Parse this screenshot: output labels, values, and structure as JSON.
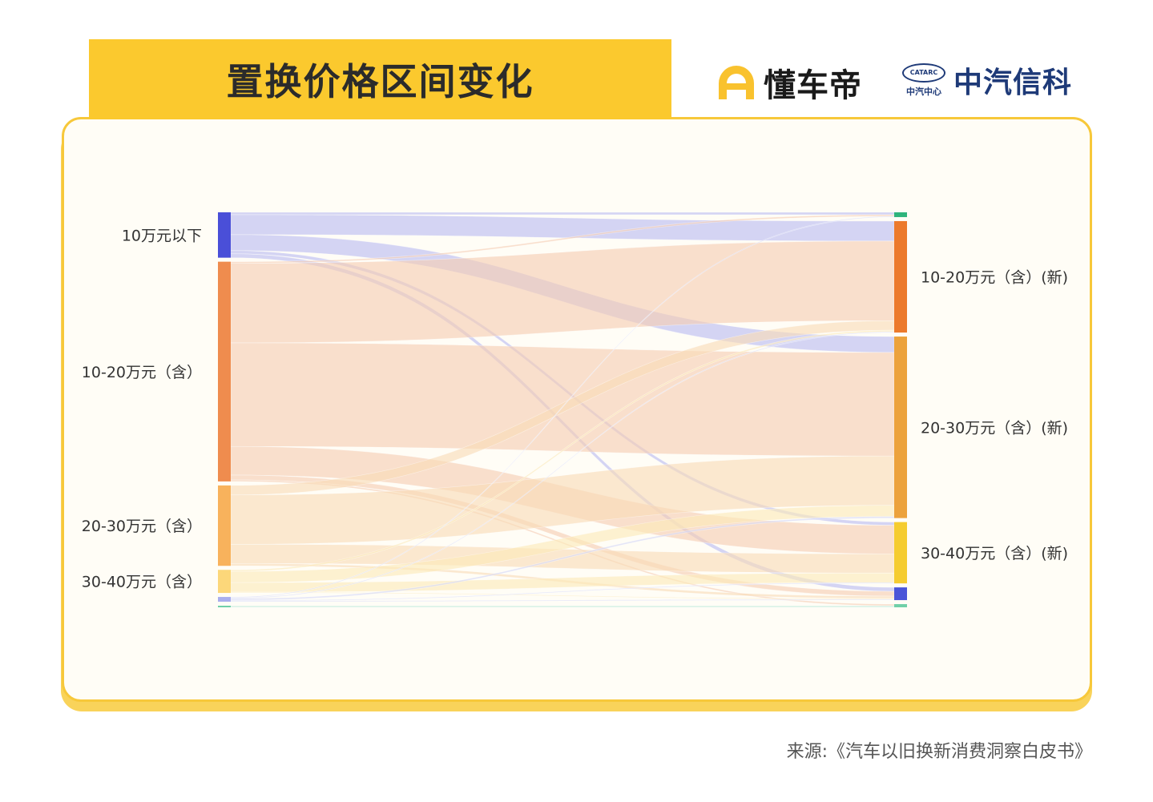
{
  "title": "置换价格区间变化",
  "logos": {
    "dongchedi": "懂车帝",
    "catarc_text": "中汽信科",
    "catarc_emblem": "CATARC",
    "catarc_small": "中汽中心"
  },
  "source": "来源:《汽车以旧换新消费洞察白皮书》",
  "chart_data": {
    "type": "sankey",
    "title": "置换价格区间变化",
    "value_unit": "relative share (estimated, unlabeled)",
    "nodes_left": [
      {
        "id": "A",
        "label": "10万元以下",
        "color": "#4a4fd8",
        "link_color": "#b9bcf0"
      },
      {
        "id": "B",
        "label": "10-20万元（含）",
        "color": "#ef8c4e",
        "link_color": "#f6cdb2"
      },
      {
        "id": "C",
        "label": "20-30万元（含）",
        "color": "#f8b25c",
        "link_color": "#f9dcb6"
      },
      {
        "id": "D",
        "label": "30-40万元（含）",
        "color": "#fcd77a",
        "link_color": "#fbeab8"
      },
      {
        "id": "E",
        "label": "",
        "color": "#a9aeee",
        "link_color": "#d4d7f6"
      },
      {
        "id": "F",
        "label": "",
        "color": "#6fd0a8",
        "link_color": "#c4ecdc"
      }
    ],
    "nodes_right": [
      {
        "id": "T0",
        "label": "",
        "color": "#2fb47c"
      },
      {
        "id": "T1",
        "label": "10-20万元（含）(新)",
        "color": "#ec7a2c"
      },
      {
        "id": "T2",
        "label": "20-30万元（含）(新)",
        "color": "#eca23c"
      },
      {
        "id": "T3",
        "label": "30-40万元（含）(新)",
        "color": "#f5cc30"
      },
      {
        "id": "T4",
        "label": "",
        "color": "#4a55d8"
      },
      {
        "id": "T5",
        "label": "",
        "color": "#6fd0a8"
      }
    ],
    "links": [
      {
        "source": "A",
        "target": "T0",
        "value": 3
      },
      {
        "source": "A",
        "target": "T1",
        "value": 25
      },
      {
        "source": "A",
        "target": "T2",
        "value": 20
      },
      {
        "source": "A",
        "target": "T3",
        "value": 4
      },
      {
        "source": "A",
        "target": "T4",
        "value": 5
      },
      {
        "source": "B",
        "target": "T0",
        "value": 2
      },
      {
        "source": "B",
        "target": "T1",
        "value": 100
      },
      {
        "source": "B",
        "target": "T2",
        "value": 130
      },
      {
        "source": "B",
        "target": "T3",
        "value": 36
      },
      {
        "source": "B",
        "target": "T4",
        "value": 6
      },
      {
        "source": "B",
        "target": "T5",
        "value": 2
      },
      {
        "source": "C",
        "target": "T1",
        "value": 12
      },
      {
        "source": "C",
        "target": "T2",
        "value": 62
      },
      {
        "source": "C",
        "target": "T3",
        "value": 24
      },
      {
        "source": "C",
        "target": "T4",
        "value": 3
      },
      {
        "source": "D",
        "target": "T1",
        "value": 2
      },
      {
        "source": "D",
        "target": "T2",
        "value": 14
      },
      {
        "source": "D",
        "target": "T3",
        "value": 12
      },
      {
        "source": "D",
        "target": "T4",
        "value": 1
      },
      {
        "source": "E",
        "target": "T0",
        "value": 1
      },
      {
        "source": "E",
        "target": "T1",
        "value": 1
      },
      {
        "source": "E",
        "target": "T2",
        "value": 2
      },
      {
        "source": "E",
        "target": "T3",
        "value": 1
      },
      {
        "source": "E",
        "target": "T4",
        "value": 1
      },
      {
        "source": "F",
        "target": "T5",
        "value": 2
      }
    ]
  }
}
